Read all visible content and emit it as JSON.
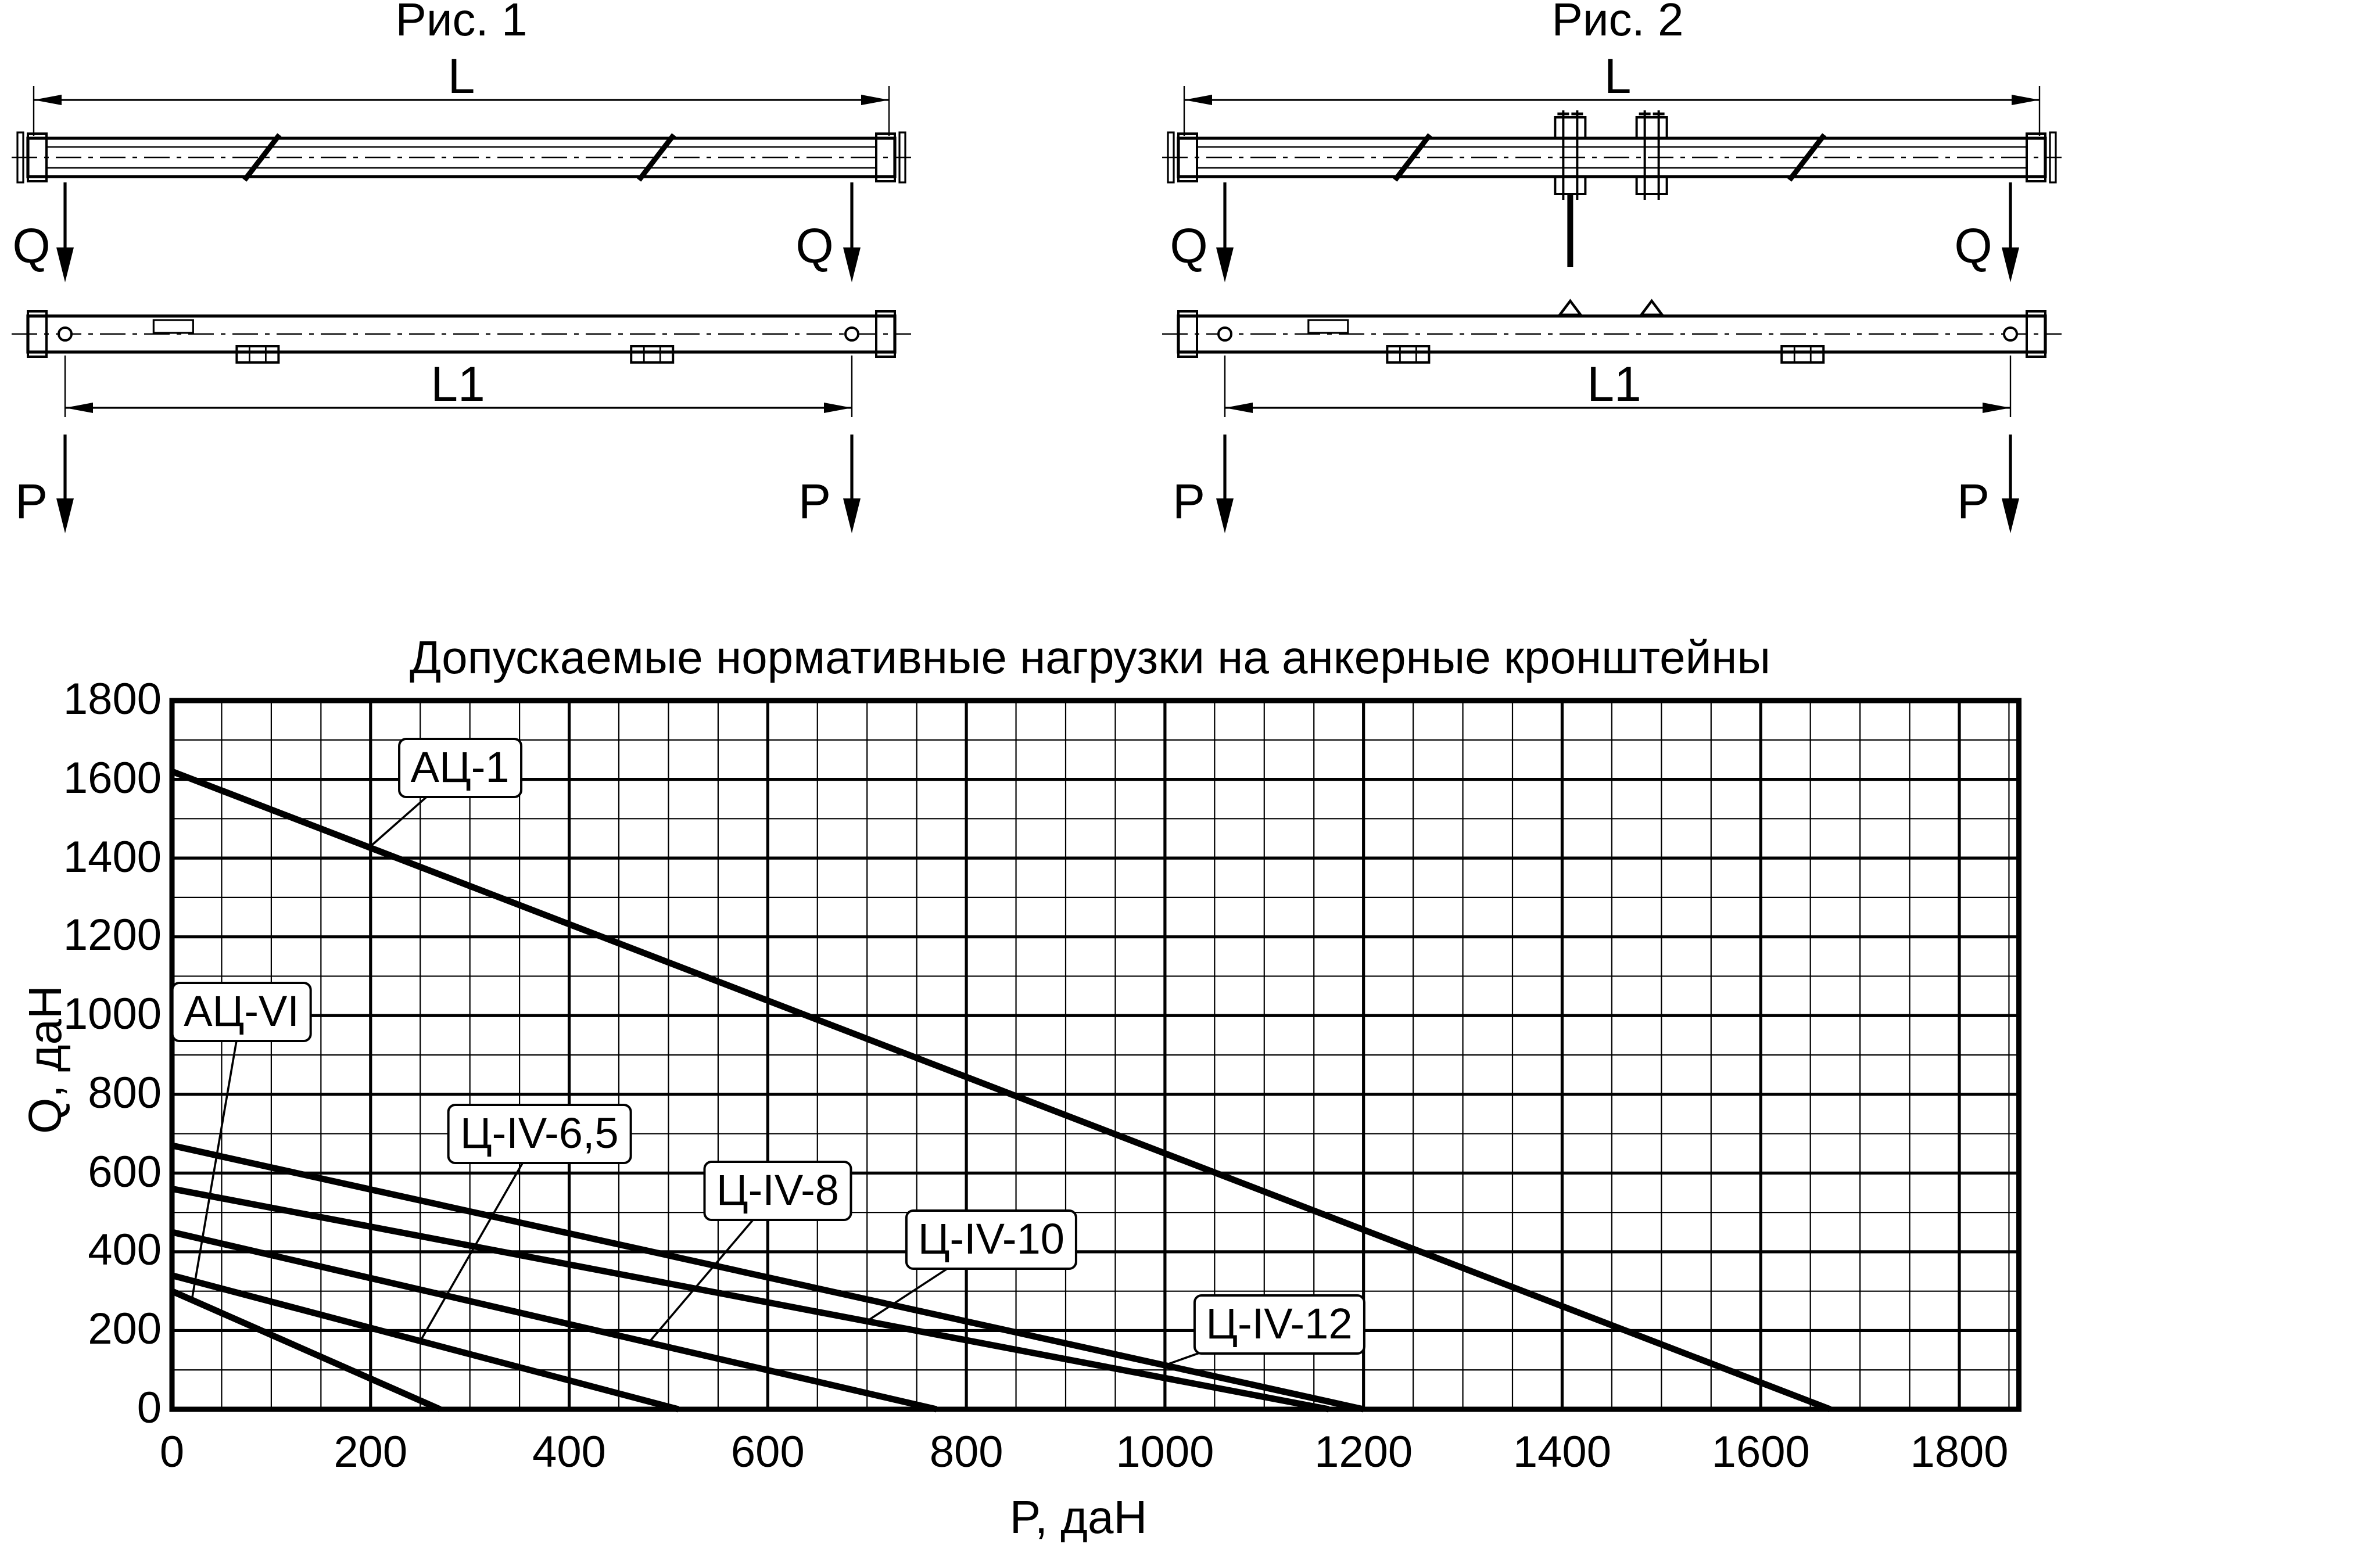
{
  "figures": [
    {
      "title": "Рис. 1",
      "dim_top_label": "L",
      "dim_bottom_label": "L1",
      "load_top_label": "Q",
      "load_bottom_label": "P",
      "variant": "basic"
    },
    {
      "title": "Рис. 2",
      "dim_top_label": "L",
      "dim_bottom_label": "L1",
      "load_top_label": "Q",
      "load_bottom_label": "P",
      "variant": "suspension"
    }
  ],
  "chart_data": {
    "type": "line",
    "title": "Допускаемые нормативные нагрузки на анкерные кронштейны",
    "xlabel": "P, даН",
    "ylabel": "Q, даН",
    "xlim": [
      0,
      1860
    ],
    "ylim": [
      0,
      1800
    ],
    "x_ticks": [
      0,
      200,
      400,
      600,
      800,
      1000,
      1200,
      1400,
      1600,
      1800
    ],
    "y_ticks": [
      0,
      200,
      400,
      600,
      800,
      1000,
      1200,
      1400,
      1600,
      1800
    ],
    "grid": {
      "x_minor": 50,
      "x_major": 200,
      "y_minor": 100,
      "y_major": 200,
      "on": true
    },
    "legend_position": "inline-labels",
    "series": [
      {
        "name": "АЦ-1",
        "points": [
          [
            0,
            1620
          ],
          [
            1670,
            0
          ]
        ],
        "label_at": [
          290,
          1630
        ],
        "leader_to": [
          200,
          1430
        ]
      },
      {
        "name": "АЦ-VI",
        "points": [
          [
            0,
            300
          ],
          [
            270,
            0
          ]
        ],
        "label_at": [
          70,
          1010
        ],
        "leader_to": [
          20,
          278
        ]
      },
      {
        "name": "Ц-IV-6,5",
        "points": [
          [
            0,
            340
          ],
          [
            510,
            0
          ]
        ],
        "label_at": [
          370,
          700
        ],
        "leader_to": [
          250,
          173
        ]
      },
      {
        "name": "Ц-IV-8",
        "points": [
          [
            0,
            450
          ],
          [
            770,
            0
          ]
        ],
        "label_at": [
          610,
          555
        ],
        "leader_to": [
          480,
          169
        ]
      },
      {
        "name": "Ц-IV-10",
        "points": [
          [
            0,
            560
          ],
          [
            1165,
            0
          ]
        ],
        "label_at": [
          825,
          430
        ],
        "leader_to": [
          700,
          224
        ]
      },
      {
        "name": "Ц-IV-12",
        "points": [
          [
            0,
            670
          ],
          [
            1200,
            0
          ]
        ],
        "label_at": [
          1115,
          215
        ],
        "leader_to": [
          1000,
          112
        ]
      }
    ]
  }
}
